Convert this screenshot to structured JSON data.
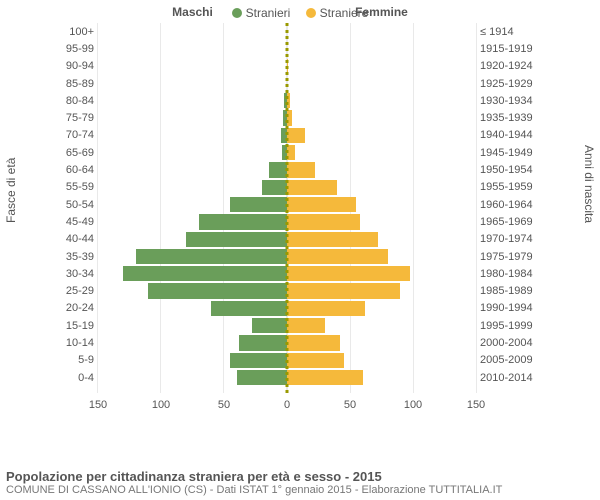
{
  "legend": {
    "male": {
      "label": "Stranieri",
      "color": "#6a9e5a"
    },
    "female": {
      "label": "Straniere",
      "color": "#f5b93b"
    }
  },
  "side_titles": {
    "left": "Maschi",
    "right": "Femmine"
  },
  "y_axis": {
    "left_title": "Fasce di età",
    "right_title": "Anni di nascita"
  },
  "x_axis": {
    "max": 150,
    "ticks": [
      0,
      50,
      100,
      150
    ]
  },
  "bar_colors": {
    "male": "#6a9e5a",
    "female": "#f5b93b"
  },
  "grid_color": "#e9e9e9",
  "center_line_color": "#999900",
  "background_color": "#ffffff",
  "rows": [
    {
      "age": "100+",
      "birth": "≤ 1914",
      "m": 0,
      "f": 0
    },
    {
      "age": "95-99",
      "birth": "1915-1919",
      "m": 0,
      "f": 0
    },
    {
      "age": "90-94",
      "birth": "1920-1924",
      "m": 0,
      "f": 1
    },
    {
      "age": "85-89",
      "birth": "1925-1929",
      "m": 0,
      "f": 0
    },
    {
      "age": "80-84",
      "birth": "1930-1934",
      "m": 2,
      "f": 2
    },
    {
      "age": "75-79",
      "birth": "1935-1939",
      "m": 3,
      "f": 4
    },
    {
      "age": "70-74",
      "birth": "1940-1944",
      "m": 5,
      "f": 14
    },
    {
      "age": "65-69",
      "birth": "1945-1949",
      "m": 4,
      "f": 6
    },
    {
      "age": "60-64",
      "birth": "1950-1954",
      "m": 14,
      "f": 22
    },
    {
      "age": "55-59",
      "birth": "1955-1959",
      "m": 20,
      "f": 40
    },
    {
      "age": "50-54",
      "birth": "1960-1964",
      "m": 45,
      "f": 55
    },
    {
      "age": "45-49",
      "birth": "1965-1969",
      "m": 70,
      "f": 58
    },
    {
      "age": "40-44",
      "birth": "1970-1974",
      "m": 80,
      "f": 72
    },
    {
      "age": "35-39",
      "birth": "1975-1979",
      "m": 120,
      "f": 80
    },
    {
      "age": "30-34",
      "birth": "1980-1984",
      "m": 130,
      "f": 98
    },
    {
      "age": "25-29",
      "birth": "1985-1989",
      "m": 110,
      "f": 90
    },
    {
      "age": "20-24",
      "birth": "1990-1994",
      "m": 60,
      "f": 62
    },
    {
      "age": "15-19",
      "birth": "1995-1999",
      "m": 28,
      "f": 30
    },
    {
      "age": "10-14",
      "birth": "2000-2004",
      "m": 38,
      "f": 42
    },
    {
      "age": "5-9",
      "birth": "2005-2009",
      "m": 45,
      "f": 45
    },
    {
      "age": "0-4",
      "birth": "2010-2014",
      "m": 40,
      "f": 60
    }
  ],
  "footer": {
    "title": "Popolazione per cittadinanza straniera per età e sesso - 2015",
    "subtitle": "COMUNE DI CASSANO ALL'IONIO (CS) - Dati ISTAT 1° gennaio 2015 - Elaborazione TUTTITALIA.IT"
  }
}
